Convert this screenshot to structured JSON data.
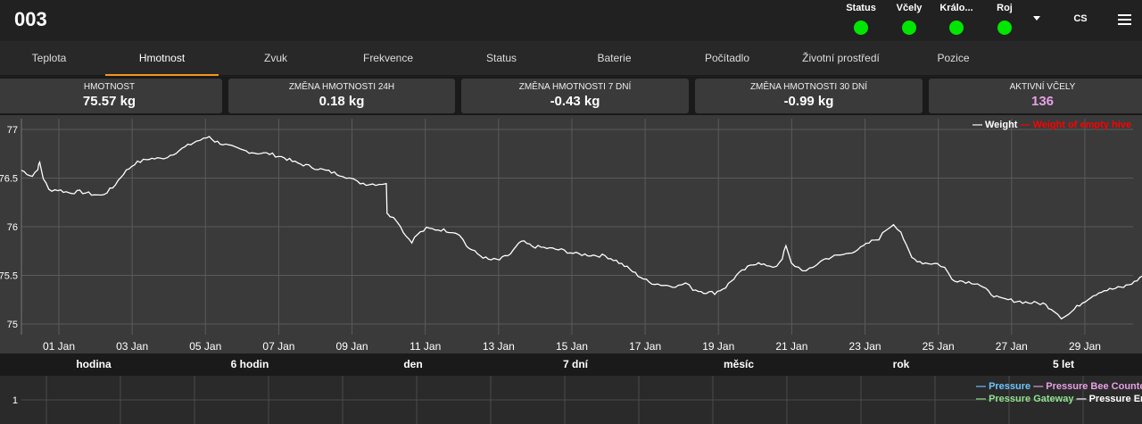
{
  "header": {
    "hive_title": "003",
    "indicators": [
      {
        "label": "Status",
        "color": "#00e600"
      },
      {
        "label": "Včely",
        "color": "#00e600"
      },
      {
        "label": "Králo...",
        "color": "#00e600"
      },
      {
        "label": "Roj",
        "color": "#00e600"
      }
    ],
    "language": "CS"
  },
  "tabs": [
    {
      "label": "Teplota"
    },
    {
      "label": "Hmotnost",
      "active": true
    },
    {
      "label": "Zvuk"
    },
    {
      "label": "Frekvence"
    },
    {
      "label": "Status"
    },
    {
      "label": "Baterie"
    },
    {
      "label": "Počítadlo"
    },
    {
      "label": "Životní prostředí"
    },
    {
      "label": "Pozice"
    }
  ],
  "kpis": [
    {
      "label": "HMOTNOST",
      "value": "75.57 kg"
    },
    {
      "label": "ZMĚNA HMOTNOSTI 24H",
      "value": "0.18 kg"
    },
    {
      "label": "ZMĚNA HMOTNOSTI 7 DNÍ",
      "value": "-0.43 kg"
    },
    {
      "label": "ZMĚNA HMOTNOSTI 30 DNÍ",
      "value": "-0.99 kg"
    },
    {
      "label": "AKTIVNÍ VČELY",
      "value": "136"
    }
  ],
  "time_ranges": [
    "hodina",
    "6 hodin",
    "den",
    "7 dní",
    "měsíc",
    "rok",
    "5 let"
  ],
  "chart_data": [
    {
      "type": "line",
      "ylim": [
        74.85,
        77.1
      ],
      "y_ticks": [
        "75",
        "75.5",
        "76",
        "76.5",
        "77"
      ],
      "x_range": [
        0,
        30.5
      ],
      "x_ticks": [
        {
          "day": 1,
          "label": "01 Jan"
        },
        {
          "day": 3,
          "label": "03 Jan"
        },
        {
          "day": 5,
          "label": "05 Jan"
        },
        {
          "day": 7,
          "label": "07 Jan"
        },
        {
          "day": 9,
          "label": "09 Jan"
        },
        {
          "day": 11,
          "label": "11 Jan"
        },
        {
          "day": 13,
          "label": "13 Jan"
        },
        {
          "day": 15,
          "label": "15 Jan"
        },
        {
          "day": 17,
          "label": "17 Jan"
        },
        {
          "day": 19,
          "label": "19 Jan"
        },
        {
          "day": 21,
          "label": "21 Jan"
        },
        {
          "day": 23,
          "label": "23 Jan"
        },
        {
          "day": 25,
          "label": "25 Jan"
        },
        {
          "day": 27,
          "label": "27 Jan"
        },
        {
          "day": 29,
          "label": "29 Jan"
        }
      ],
      "legend": [
        {
          "name": "Weight",
          "color": "#ffffff"
        },
        {
          "name": "Weight of empty hive",
          "color": "#ff0000"
        }
      ],
      "series": [
        {
          "name": "Weight",
          "color": "#ffffff",
          "points": [
            [
              0,
              76.58
            ],
            [
              0.3,
              76.52
            ],
            [
              0.45,
              76.6
            ],
            [
              0.5,
              76.66
            ],
            [
              0.6,
              76.5
            ],
            [
              0.75,
              76.38
            ],
            [
              1.0,
              76.38
            ],
            [
              1.3,
              76.35
            ],
            [
              1.6,
              76.36
            ],
            [
              2.0,
              76.33
            ],
            [
              2.2,
              76.32
            ],
            [
              2.5,
              76.4
            ],
            [
              2.8,
              76.55
            ],
            [
              3.1,
              76.65
            ],
            [
              3.5,
              76.7
            ],
            [
              3.8,
              76.7
            ],
            [
              4.0,
              76.72
            ],
            [
              4.4,
              76.8
            ],
            [
              4.8,
              76.88
            ],
            [
              5.0,
              76.9
            ],
            [
              5.15,
              76.93
            ],
            [
              5.3,
              76.88
            ],
            [
              5.6,
              76.84
            ],
            [
              6.0,
              76.79
            ],
            [
              6.4,
              76.76
            ],
            [
              6.8,
              76.75
            ],
            [
              7.2,
              76.71
            ],
            [
              7.5,
              76.66
            ],
            [
              7.8,
              76.63
            ],
            [
              8.2,
              76.59
            ],
            [
              8.5,
              76.56
            ],
            [
              8.8,
              76.53
            ],
            [
              9.0,
              76.5
            ],
            [
              9.2,
              76.46
            ],
            [
              9.45,
              76.44
            ],
            [
              9.8,
              76.44
            ],
            [
              10.0,
              76.45
            ],
            [
              10.02,
              76.15
            ],
            [
              10.1,
              76.12
            ],
            [
              10.3,
              76.06
            ],
            [
              10.55,
              75.9
            ],
            [
              10.7,
              75.85
            ],
            [
              10.85,
              75.92
            ],
            [
              11.1,
              75.98
            ],
            [
              11.5,
              75.97
            ],
            [
              11.8,
              75.95
            ],
            [
              12.0,
              75.93
            ],
            [
              12.2,
              75.8
            ],
            [
              12.5,
              75.72
            ],
            [
              12.8,
              75.66
            ],
            [
              13.1,
              75.66
            ],
            [
              13.4,
              75.72
            ],
            [
              13.7,
              75.85
            ],
            [
              14.0,
              75.8
            ],
            [
              14.4,
              75.78
            ],
            [
              14.8,
              75.76
            ],
            [
              15.2,
              75.72
            ],
            [
              15.6,
              75.71
            ],
            [
              16.0,
              75.7
            ],
            [
              16.3,
              75.65
            ],
            [
              16.6,
              75.58
            ],
            [
              16.9,
              75.5
            ],
            [
              17.2,
              75.43
            ],
            [
              17.6,
              75.4
            ],
            [
              18.0,
              75.39
            ],
            [
              18.2,
              75.42
            ],
            [
              18.4,
              75.36
            ],
            [
              18.7,
              75.33
            ],
            [
              19.0,
              75.32
            ],
            [
              19.3,
              75.38
            ],
            [
              19.6,
              75.5
            ],
            [
              19.9,
              75.58
            ],
            [
              20.2,
              75.64
            ],
            [
              20.5,
              75.58
            ],
            [
              20.7,
              75.6
            ],
            [
              20.85,
              75.68
            ],
            [
              20.95,
              75.8
            ],
            [
              21.1,
              75.62
            ],
            [
              21.3,
              75.58
            ],
            [
              21.5,
              75.54
            ],
            [
              21.7,
              75.58
            ],
            [
              21.9,
              75.65
            ],
            [
              22.2,
              75.69
            ],
            [
              22.6,
              75.72
            ],
            [
              23.0,
              75.78
            ],
            [
              23.3,
              75.85
            ],
            [
              23.5,
              75.88
            ],
            [
              23.7,
              75.97
            ],
            [
              23.9,
              76.03
            ],
            [
              24.1,
              75.95
            ],
            [
              24.25,
              75.8
            ],
            [
              24.4,
              75.68
            ],
            [
              24.7,
              75.63
            ],
            [
              25.1,
              75.62
            ],
            [
              25.3,
              75.58
            ],
            [
              25.5,
              75.46
            ],
            [
              25.8,
              75.44
            ],
            [
              26.2,
              75.42
            ],
            [
              26.5,
              75.33
            ],
            [
              26.8,
              75.26
            ],
            [
              27.2,
              75.24
            ],
            [
              27.6,
              75.22
            ],
            [
              28.0,
              75.21
            ],
            [
              28.3,
              75.14
            ],
            [
              28.5,
              75.07
            ],
            [
              28.7,
              75.1
            ],
            [
              29.0,
              75.2
            ],
            [
              29.3,
              75.28
            ],
            [
              29.6,
              75.34
            ],
            [
              29.9,
              75.36
            ],
            [
              30.2,
              75.38
            ],
            [
              30.5,
              75.43
            ],
            [
              30.8,
              75.52
            ],
            [
              31.1,
              75.56
            ],
            [
              31.3,
              75.57
            ],
            [
              31.45,
              75.55
            ]
          ]
        }
      ]
    },
    {
      "type": "line",
      "y_ticks": [
        "1"
      ],
      "legend": [
        {
          "name": "Pressure",
          "color": "#6ec6ff"
        },
        {
          "name": "Pressure Bee Counter",
          "color": "#e6a1e3"
        },
        {
          "name": "Pressure Gateway",
          "color": "#8fe38f"
        },
        {
          "name": "Pressure Environment",
          "color": "#ffffff"
        }
      ]
    }
  ]
}
